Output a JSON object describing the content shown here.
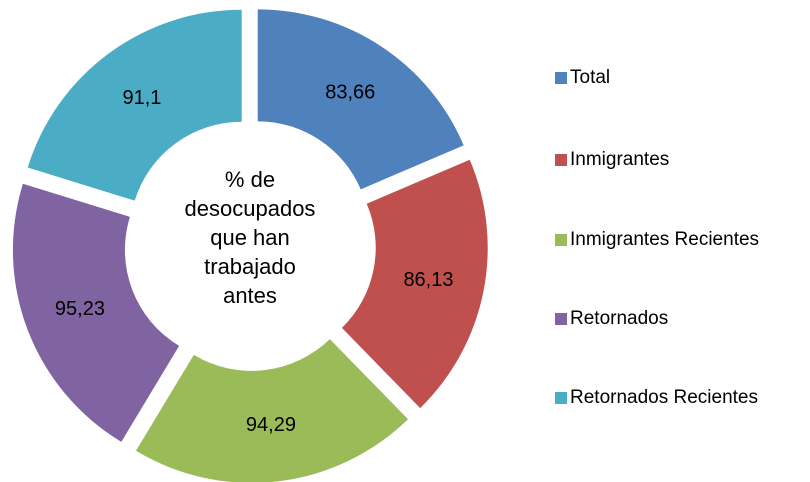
{
  "chart_data": {
    "type": "doughnut",
    "title": "% de desocupados que han trabajado antes",
    "categories": [
      "Total",
      "Inmigrantes",
      "Inmigrantes Recientes",
      "Retornados",
      "Retornados Recientes"
    ],
    "values": [
      83.66,
      86.13,
      94.29,
      95.23,
      91.1
    ],
    "value_labels": [
      "83,66",
      "86,13",
      "94,29",
      "95,23",
      "91,1"
    ],
    "colors": [
      "#4f81bd",
      "#c0504d",
      "#9bbb59",
      "#8064a2",
      "#4bacc6"
    ],
    "legend": "right"
  }
}
